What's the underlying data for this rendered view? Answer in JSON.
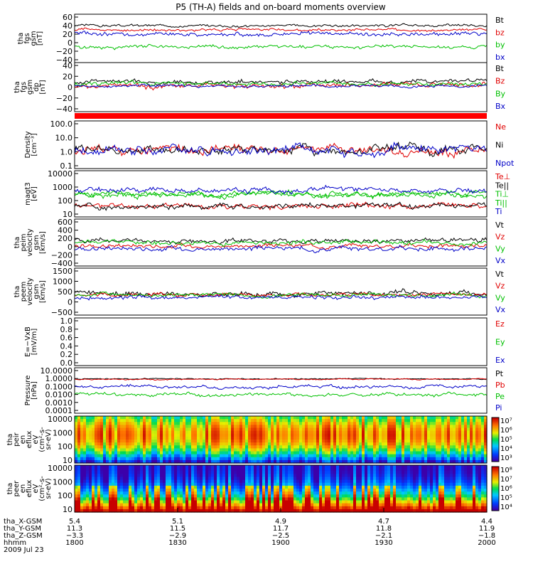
{
  "title": "P5 (TH-A) fields and on-board moments overview",
  "chart_data": [
    {
      "id": "fgs_gsm",
      "type": "line",
      "ylabel": [
        "tha",
        "fgs",
        "gsm",
        "[nT]"
      ],
      "yticks": [
        "60",
        "40",
        "20",
        "0",
        "−20",
        "−40"
      ],
      "ylim": [
        -40,
        60
      ],
      "series": [
        {
          "name": "Bt",
          "color": "#000000",
          "base": 40,
          "amp": 4
        },
        {
          "name": "bz",
          "color": "#e00000",
          "base": 30,
          "amp": 4
        },
        {
          "name": "by",
          "color": "#00c000",
          "base": -10,
          "amp": 5
        },
        {
          "name": "bx",
          "color": "#0000c8",
          "base": 20,
          "amp": 6
        }
      ]
    },
    {
      "id": "fgs_gsm_dp",
      "type": "line",
      "ylabel": [
        "tha",
        "fgs",
        "gsm",
        "dp",
        "[nT]"
      ],
      "yticks": [
        "40",
        "20",
        "0",
        "−20",
        "−40"
      ],
      "ylim": [
        -50,
        45
      ],
      "series": [
        {
          "name": "Bt",
          "color": "#000000",
          "base": 10,
          "amp": 6
        },
        {
          "name": "Bz",
          "color": "#e00000",
          "base": 0,
          "amp": 8
        },
        {
          "name": "By",
          "color": "#00c000",
          "base": 5,
          "amp": 6
        },
        {
          "name": "Bx",
          "color": "#0000c8",
          "base": 0,
          "amp": 4
        }
      ]
    },
    {
      "id": "density",
      "type": "line",
      "log": true,
      "ylabel": [
        "Density",
        "[cm⁻³]"
      ],
      "yticks": [
        "100.0",
        "10.0",
        "1.0",
        "0.1"
      ],
      "ylim": [
        0.1,
        100
      ],
      "series": [
        {
          "name": "Ne",
          "color": "#e00000",
          "base": 1.5,
          "amp": 0.5
        },
        {
          "name": "Ni",
          "color": "#000000",
          "base": 1.5,
          "amp": 0.5
        },
        {
          "name": "Npot",
          "color": "#0000c8",
          "base": 1.4,
          "amp": 0.5
        }
      ]
    },
    {
      "id": "temperature",
      "type": "line",
      "log": true,
      "ylabel": [
        "magt3",
        "[eV]"
      ],
      "yticks": [
        "10000",
        "1000",
        "100",
        "10"
      ],
      "ylim": [
        10,
        10000
      ],
      "series": [
        {
          "name": "Te⊥",
          "color": "#e00000",
          "base": 40,
          "amp": 0.3
        },
        {
          "name": "Te||",
          "color": "#000000",
          "base": 40,
          "amp": 0.3
        },
        {
          "name": "Ti⊥",
          "color": "#00c000",
          "base": 300,
          "amp": 0.3
        },
        {
          "name": "Ti||",
          "color": "#00c000",
          "base": 300,
          "amp": 0.3
        },
        {
          "name": "Ti",
          "color": "#0000c8",
          "base": 600,
          "amp": 0.3
        }
      ]
    },
    {
      "id": "peim_velocity",
      "type": "line",
      "ylabel": [
        "tha",
        "peim",
        "velocity",
        "gsm",
        "[km/s]"
      ],
      "yticks": [
        "600",
        "400",
        "200",
        "0",
        "−200",
        "−400"
      ],
      "ylim": [
        -400,
        600
      ],
      "series": [
        {
          "name": "Vt",
          "color": "#000000",
          "base": 150,
          "amp": 70
        },
        {
          "name": "Vz",
          "color": "#e00000",
          "base": 20,
          "amp": 60
        },
        {
          "name": "Vy",
          "color": "#00c000",
          "base": 100,
          "amp": 70
        },
        {
          "name": "Vx",
          "color": "#0000c8",
          "base": -50,
          "amp": 70
        }
      ]
    },
    {
      "id": "peem_velocity",
      "type": "line",
      "ylabel": [
        "tha",
        "peem",
        "velocity",
        "gsm",
        "[km/s]"
      ],
      "yticks": [
        "1500",
        "1000",
        "500",
        "0",
        "−500"
      ],
      "ylim": [
        -1000,
        1500
      ],
      "series": [
        {
          "name": "Vt",
          "color": "#000000",
          "base": 150,
          "amp": 200
        },
        {
          "name": "Vz",
          "color": "#e00000",
          "base": 50,
          "amp": 150
        },
        {
          "name": "Vy",
          "color": "#00c000",
          "base": 50,
          "amp": 150
        },
        {
          "name": "Vx",
          "color": "#0000c8",
          "base": -100,
          "amp": 150
        }
      ]
    },
    {
      "id": "efield",
      "type": "line",
      "ylabel": [
        "E=−VxB",
        "[mV/m]"
      ],
      "yticks": [
        "1.0",
        "0.8",
        "0.6",
        "0.4",
        "0.2",
        "0.0"
      ],
      "ylim": [
        0,
        1
      ],
      "series": [
        {
          "name": "Ez",
          "color": "#e00000"
        },
        {
          "name": "Ey",
          "color": "#00c000"
        },
        {
          "name": "Ex",
          "color": "#0000c8"
        }
      ]
    },
    {
      "id": "pressure",
      "type": "line",
      "log": true,
      "ylabel": [
        "Pressure",
        "[nPa]"
      ],
      "yticks": [
        "10.0000",
        "1.0000",
        "0.1000",
        "0.0100",
        "0.0010",
        "0.0001"
      ],
      "ylim": [
        0.0001,
        10
      ],
      "series": [
        {
          "name": "Pt",
          "color": "#000000",
          "base": 0.9,
          "amp": 0.1
        },
        {
          "name": "Pb",
          "color": "#e00000",
          "base": 0.8,
          "amp": 0.1
        },
        {
          "name": "Pe",
          "color": "#00c000",
          "base": 0.01,
          "amp": 0.3
        },
        {
          "name": "Pi",
          "color": "#0000c8",
          "base": 0.1,
          "amp": 0.3
        }
      ]
    },
    {
      "id": "peir_spectrogram",
      "type": "heatmap",
      "ylabel": [
        "tha",
        "peir",
        "en",
        "eflux",
        "eV",
        "(cm²-s-",
        "sr-eV)"
      ],
      "yticks": [
        "10000",
        "1000",
        "100",
        "10"
      ],
      "ylim": [
        10,
        10000
      ],
      "colorbar": [
        "10⁷",
        "10⁶",
        "10⁵",
        "10⁴",
        "10³"
      ]
    },
    {
      "id": "peer_spectrogram",
      "type": "heatmap",
      "ylabel": [
        "tha",
        "peer",
        "en",
        "eflux",
        "eV",
        "(cm²-s-",
        "sr-eV)"
      ],
      "yticks": [
        "10000",
        "1000",
        "100",
        "10"
      ],
      "ylim": [
        10,
        10000
      ],
      "colorbar": [
        "10⁸",
        "10⁷",
        "10⁶",
        "10⁵",
        "10⁴"
      ]
    }
  ],
  "xaxis": {
    "rows": [
      {
        "label": "tha_X-GSM",
        "values": [
          "5.4",
          "5.1",
          "4.9",
          "4.7",
          "4.4"
        ]
      },
      {
        "label": "tha_Y-GSM",
        "values": [
          "11.3",
          "11.5",
          "11.7",
          "11.8",
          "11.9"
        ]
      },
      {
        "label": "tha_Z-GSM",
        "values": [
          "−3.3",
          "−2.9",
          "−2.5",
          "−2.1",
          "−1.8"
        ]
      },
      {
        "label": "hhmm",
        "values": [
          "1800",
          "1830",
          "1900",
          "1930",
          "2000"
        ]
      }
    ],
    "date": "2009 Jul 23"
  },
  "colors": {
    "red": "#e00000",
    "green": "#00c000",
    "blue": "#0000c8",
    "black": "#000000"
  }
}
